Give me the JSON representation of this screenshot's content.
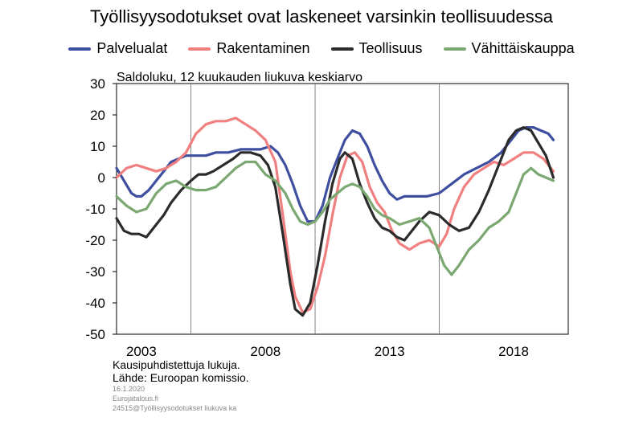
{
  "title": "Työllisyysodotukset ovat laskeneet varsinkin teollisuudessa",
  "subtitle": "Saldoluku, 12 kuukauden liukuva keskiarvo",
  "footnotes": {
    "line1": "Kausipuhdistettuja  lukuja.",
    "line2": "Lähde:  Euroopan komissio.",
    "date": "16.1.2020",
    "site": "Eurojatalous.fi",
    "code": "24515@Työllisyysodotukset liukuva ka"
  },
  "chart_data": {
    "type": "line",
    "title": "Työllisyysodotukset ovat laskeneet varsinkin teollisuudessa",
    "subtitle": "Saldoluku, 12 kuukauden liukuva keskiarvo",
    "xlabel": "",
    "ylabel": "",
    "xlim": [
      2002.0,
      2020.2
    ],
    "ylim": [
      -50,
      30
    ],
    "yticks": [
      30,
      20,
      10,
      0,
      -10,
      -20,
      -30,
      -40,
      -50
    ],
    "xtick_labels": [
      "2003",
      "2008",
      "2013",
      "2018"
    ],
    "xticks": [
      2003,
      2008,
      2013,
      2018
    ],
    "vertical_gridlines_at": [
      2005,
      2010,
      2015
    ],
    "grid": false,
    "legend_position": "top",
    "series": [
      {
        "name": "Palvelualat",
        "color": "#3f4fa0",
        "x": [
          2002.0,
          2002.3,
          2002.6,
          2002.8,
          2003.0,
          2003.3,
          2003.6,
          2003.9,
          2004.2,
          2004.5,
          2004.8,
          2005.2,
          2005.6,
          2006.0,
          2006.5,
          2007.0,
          2007.5,
          2007.8,
          2008.2,
          2008.5,
          2008.8,
          2009.1,
          2009.4,
          2009.7,
          2010.0,
          2010.3,
          2010.6,
          2010.9,
          2011.2,
          2011.5,
          2011.8,
          2012.1,
          2012.4,
          2012.7,
          2013.0,
          2013.3,
          2013.6,
          2014.0,
          2014.5,
          2015.0,
          2015.5,
          2016.0,
          2016.5,
          2017.0,
          2017.5,
          2017.9,
          2018.2,
          2018.5,
          2018.8,
          2019.1,
          2019.4,
          2019.6
        ],
        "values": [
          3,
          -1,
          -5,
          -6,
          -6,
          -4,
          -1,
          2,
          5,
          6,
          7,
          7,
          7,
          8,
          8,
          9,
          9,
          9,
          10,
          8,
          4,
          -2,
          -9,
          -14,
          -14,
          -9,
          0,
          6,
          12,
          15,
          14,
          10,
          4,
          -1,
          -5,
          -7,
          -6,
          -6,
          -6,
          -5,
          -2,
          1,
          3,
          5,
          8,
          12,
          15,
          16,
          16,
          15,
          14,
          12
        ]
      },
      {
        "name": "Rakentaminen",
        "color": "#f08080",
        "x": [
          2002.0,
          2002.4,
          2002.8,
          2003.2,
          2003.6,
          2004.0,
          2004.4,
          2004.8,
          2005.2,
          2005.6,
          2006.0,
          2006.4,
          2006.8,
          2007.2,
          2007.6,
          2008.0,
          2008.4,
          2008.7,
          2009.0,
          2009.2,
          2009.5,
          2009.8,
          2010.1,
          2010.4,
          2010.7,
          2011.0,
          2011.3,
          2011.6,
          2011.9,
          2012.2,
          2012.5,
          2012.8,
          2013.1,
          2013.4,
          2013.8,
          2014.2,
          2014.6,
          2015.0,
          2015.3,
          2015.6,
          2016.0,
          2016.4,
          2016.8,
          2017.2,
          2017.6,
          2018.0,
          2018.4,
          2018.8,
          2019.2,
          2019.6
        ],
        "values": [
          0,
          3,
          4,
          3,
          2,
          3,
          5,
          8,
          14,
          17,
          18,
          18,
          19,
          17,
          15,
          12,
          5,
          -12,
          -30,
          -38,
          -43,
          -42,
          -35,
          -25,
          -12,
          0,
          7,
          8,
          5,
          -3,
          -8,
          -11,
          -17,
          -21,
          -23,
          -21,
          -20,
          -22,
          -18,
          -10,
          -3,
          1,
          3,
          5,
          4,
          6,
          8,
          8,
          6,
          2
        ]
      },
      {
        "name": "Teollisuus",
        "color": "#2b2b2b",
        "x": [
          2002.0,
          2002.3,
          2002.6,
          2002.9,
          2003.2,
          2003.6,
          2003.9,
          2004.2,
          2004.6,
          2005.0,
          2005.3,
          2005.6,
          2005.9,
          2006.3,
          2006.7,
          2007.0,
          2007.4,
          2007.8,
          2008.1,
          2008.4,
          2008.7,
          2009.0,
          2009.2,
          2009.5,
          2009.8,
          2010.1,
          2010.4,
          2010.7,
          2011.0,
          2011.2,
          2011.5,
          2011.8,
          2012.1,
          2012.4,
          2012.7,
          2013.0,
          2013.3,
          2013.6,
          2013.9,
          2014.2,
          2014.6,
          2015.0,
          2015.4,
          2015.8,
          2016.2,
          2016.6,
          2017.0,
          2017.4,
          2017.8,
          2018.1,
          2018.4,
          2018.7,
          2019.0,
          2019.3,
          2019.6
        ],
        "values": [
          -13,
          -17,
          -18,
          -18,
          -19,
          -15,
          -12,
          -8,
          -4,
          -1,
          1,
          1,
          2,
          4,
          6,
          8,
          8,
          7,
          4,
          -3,
          -18,
          -34,
          -42,
          -44,
          -40,
          -28,
          -14,
          -2,
          6,
          8,
          6,
          -2,
          -8,
          -13,
          -16,
          -17,
          -19,
          -20,
          -17,
          -14,
          -11,
          -12,
          -15,
          -17,
          -16,
          -11,
          -4,
          4,
          12,
          15,
          16,
          15,
          11,
          7,
          0
        ]
      },
      {
        "name": "Vähittäiskauppa",
        "color": "#7aa870",
        "x": [
          2002.0,
          2002.4,
          2002.8,
          2003.2,
          2003.6,
          2004.0,
          2004.4,
          2004.8,
          2005.2,
          2005.6,
          2006.0,
          2006.4,
          2006.8,
          2007.2,
          2007.6,
          2008.0,
          2008.4,
          2008.8,
          2009.1,
          2009.4,
          2009.7,
          2010.0,
          2010.3,
          2010.6,
          2010.9,
          2011.2,
          2011.5,
          2011.8,
          2012.1,
          2012.4,
          2012.7,
          2013.0,
          2013.4,
          2013.8,
          2014.2,
          2014.6,
          2014.9,
          2015.2,
          2015.5,
          2015.8,
          2016.2,
          2016.6,
          2017.0,
          2017.4,
          2017.8,
          2018.1,
          2018.4,
          2018.7,
          2019.0,
          2019.3,
          2019.6
        ],
        "values": [
          -6,
          -9,
          -11,
          -10,
          -5,
          -2,
          -1,
          -3,
          -4,
          -4,
          -3,
          0,
          3,
          5,
          5,
          1,
          -1,
          -5,
          -10,
          -14,
          -15,
          -14,
          -11,
          -7,
          -5,
          -3,
          -2,
          -3,
          -6,
          -10,
          -12,
          -13,
          -15,
          -14,
          -13,
          -16,
          -22,
          -28,
          -31,
          -28,
          -23,
          -20,
          -16,
          -14,
          -11,
          -5,
          1,
          3,
          1,
          0,
          -1
        ]
      }
    ]
  }
}
